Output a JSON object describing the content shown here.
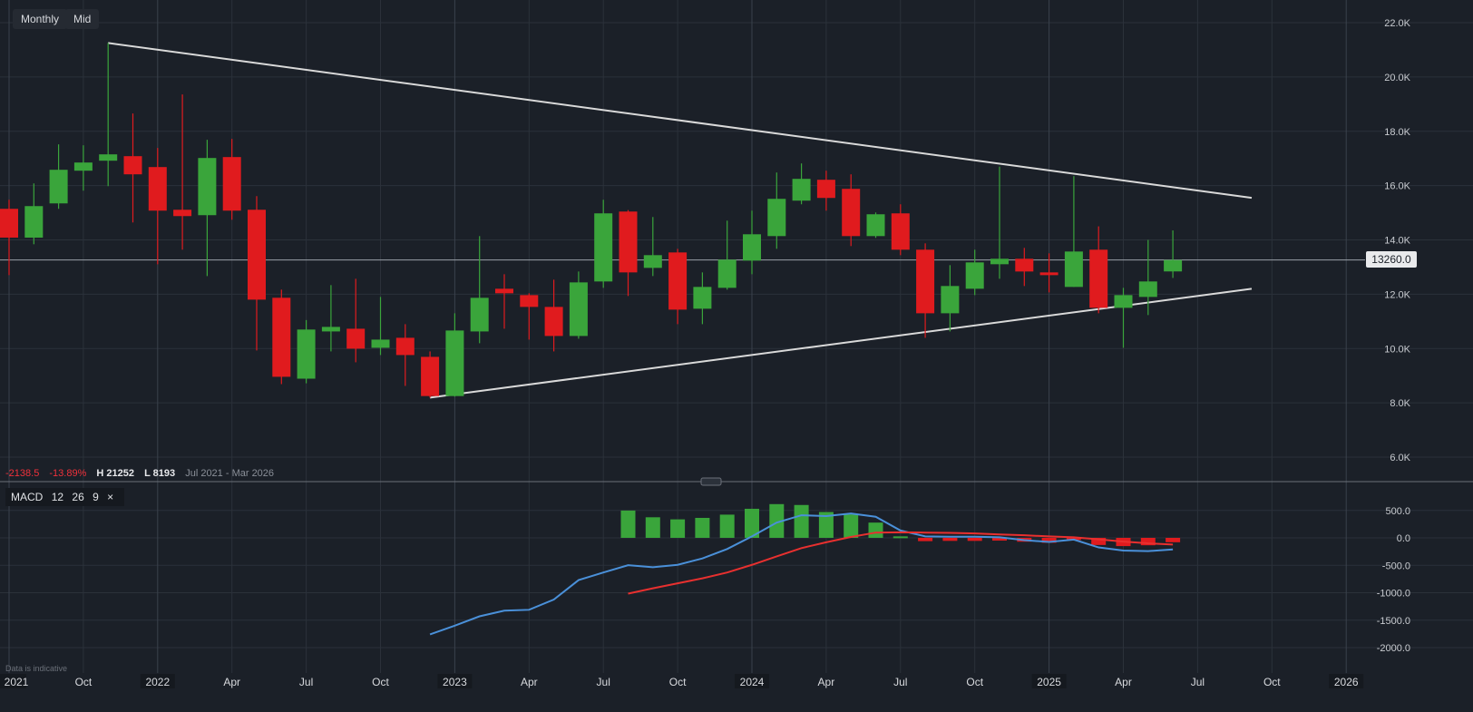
{
  "toolbar": {
    "interval": "Monthly",
    "price_type": "Mid"
  },
  "stats": {
    "change": "-2138.5",
    "change_pct": "-13.89%",
    "high": "H 21252",
    "low": "L 8193",
    "range": "Jul 2021 - Mar 2026"
  },
  "current_price": "13260.0",
  "macd_legend": {
    "name": "MACD",
    "fast": "12",
    "slow": "26",
    "signal": "9",
    "close": "×"
  },
  "footer_note": "Data is indicative",
  "colors": {
    "background": "#1b2028",
    "up": "#3aa53b",
    "down": "#e01b1e",
    "macd_line": "#4a90d9",
    "signal_line": "#e8302f",
    "trendline": "#d9d9d9"
  },
  "chart_data": [
    {
      "type": "candlestick",
      "grid": true,
      "y_ticks": [
        "22.0K",
        "20.0K",
        "18.0K",
        "16.0K",
        "14.0K",
        "12.0K",
        "10.0K",
        "8.0K",
        "6.0K"
      ],
      "ylim": [
        6000,
        22000
      ],
      "x_ticks": [
        {
          "month": "2021-07",
          "label": "2021",
          "year": true
        },
        {
          "month": "2021-10",
          "label": "Oct"
        },
        {
          "month": "2022-01",
          "label": "2022",
          "year": true
        },
        {
          "month": "2022-04",
          "label": "Apr"
        },
        {
          "month": "2022-07",
          "label": "Jul"
        },
        {
          "month": "2022-10",
          "label": "Oct"
        },
        {
          "month": "2023-01",
          "label": "2023",
          "year": true
        },
        {
          "month": "2023-04",
          "label": "Apr"
        },
        {
          "month": "2023-07",
          "label": "Jul"
        },
        {
          "month": "2023-10",
          "label": "Oct"
        },
        {
          "month": "2024-01",
          "label": "2024",
          "year": true
        },
        {
          "month": "2024-04",
          "label": "Apr"
        },
        {
          "month": "2024-07",
          "label": "Jul"
        },
        {
          "month": "2024-10",
          "label": "Oct"
        },
        {
          "month": "2025-01",
          "label": "2025",
          "year": true
        },
        {
          "month": "2025-04",
          "label": "Apr"
        },
        {
          "month": "2025-07",
          "label": "Jul"
        },
        {
          "month": "2025-10",
          "label": "Oct"
        },
        {
          "month": "2026-01",
          "label": "2026",
          "year": true
        }
      ],
      "candles_columns": [
        "month",
        "open",
        "high",
        "low",
        "close"
      ],
      "candles": [
        [
          "2021-07",
          15145,
          15479,
          12704,
          14085
        ],
        [
          "2021-08",
          14085,
          16081,
          13840,
          15245
        ],
        [
          "2021-09",
          15345,
          17519,
          15145,
          16583
        ],
        [
          "2021-10",
          16549,
          17485,
          15814,
          16850
        ],
        [
          "2021-11",
          16917,
          21252,
          15981,
          17151
        ],
        [
          "2021-12",
          17084,
          18656,
          14643,
          16416
        ],
        [
          "2022-01",
          16683,
          17385,
          13105,
          15078
        ],
        [
          "2022-02",
          15111,
          19358,
          13640,
          14877
        ],
        [
          "2022-03",
          14911,
          17686,
          12670,
          17017
        ],
        [
          "2022-04",
          17051,
          17720,
          14743,
          15078
        ],
        [
          "2022-05",
          15111,
          15613,
          9928,
          11801
        ],
        [
          "2022-06",
          11870,
          12170,
          8690,
          8960
        ],
        [
          "2022-07",
          8890,
          11050,
          8720,
          10700
        ],
        [
          "2022-08",
          10630,
          12336,
          9895,
          10797
        ],
        [
          "2022-09",
          10730,
          12570,
          9494,
          9995
        ],
        [
          "2022-10",
          10028,
          11901,
          9761,
          10329
        ],
        [
          "2022-11",
          10396,
          10898,
          8624,
          9761
        ],
        [
          "2022-12",
          9694,
          9895,
          8193,
          8250
        ],
        [
          "2023-01",
          8250,
          11299,
          8230,
          10664
        ],
        [
          "2023-02",
          10630,
          14141,
          10196,
          11868
        ],
        [
          "2023-03",
          12202,
          12737,
          10731,
          12035
        ],
        [
          "2023-04",
          11968,
          12035,
          10329,
          11533
        ],
        [
          "2023-05",
          11533,
          12536,
          9895,
          10463
        ],
        [
          "2023-06",
          10463,
          12837,
          10363,
          12436
        ],
        [
          "2023-07",
          12470,
          15479,
          12236,
          14978
        ],
        [
          "2023-08",
          15045,
          15100,
          11935,
          12804
        ],
        [
          "2023-09",
          12971,
          14843,
          12670,
          13439
        ],
        [
          "2023-10",
          13539,
          13673,
          10898,
          11433
        ],
        [
          "2023-11",
          11467,
          12804,
          10898,
          12269
        ],
        [
          "2023-12",
          12236,
          14710,
          12169,
          13272
        ],
        [
          "2024-01",
          13239,
          15078,
          12737,
          14208
        ],
        [
          "2024-02",
          14141,
          16483,
          13673,
          15513
        ],
        [
          "2024-03",
          15446,
          16817,
          15312,
          16249
        ],
        [
          "2024-04",
          16215,
          16550,
          15078,
          15546
        ],
        [
          "2024-05",
          15881,
          16416,
          13773,
          14141
        ],
        [
          "2024-06",
          14141,
          15011,
          14075,
          14944
        ],
        [
          "2024-07",
          14978,
          15312,
          13439,
          13640
        ],
        [
          "2024-08",
          13640,
          13874,
          10396,
          11299
        ],
        [
          "2024-09",
          11299,
          13071,
          10630,
          12303
        ],
        [
          "2024-10",
          12202,
          13640,
          11968,
          13172
        ],
        [
          "2024-11",
          13105,
          16700,
          12570,
          13306
        ],
        [
          "2024-12",
          13306,
          13707,
          12302,
          12837
        ],
        [
          "2025-01",
          12804,
          13506,
          12068,
          12703
        ],
        [
          "2025-02",
          12269,
          16350,
          12269,
          13573
        ],
        [
          "2025-03",
          13640,
          14500,
          11300,
          11500
        ],
        [
          "2025-04",
          11500,
          12236,
          10028,
          11968
        ],
        [
          "2025-05",
          11901,
          14000,
          11233,
          12470
        ],
        [
          "2025-06",
          12840,
          14350,
          12600,
          13260
        ]
      ],
      "current_price_line": 13260,
      "trendlines": [
        {
          "from": [
            "2021-11",
            21252
          ],
          "to": [
            "2025-09",
            15550
          ]
        },
        {
          "from": [
            "2022-12",
            8193
          ],
          "to": [
            "2025-09",
            12200
          ]
        }
      ]
    },
    {
      "type": "macd",
      "grid": true,
      "y_ticks": [
        "500.0",
        "0.0",
        "-500.0",
        "-1000.0",
        "-1500.0",
        "-2000.0"
      ],
      "ylim": [
        -2300,
        800
      ],
      "macd_start": "2022-12",
      "macd": [
        -1760,
        -1600,
        -1430,
        -1327,
        -1311,
        -1124,
        -770,
        -631,
        -498,
        -535,
        -492,
        -375,
        -203,
        27,
        278,
        412,
        396,
        444,
        385,
        134,
        27,
        20,
        21,
        10,
        -42,
        -74,
        -32,
        -174,
        -231,
        -242,
        -210
      ],
      "signal_start": "2023-08",
      "signal": [
        -1016,
        -920,
        -829,
        -738,
        -631,
        -492,
        -337,
        -187,
        -80,
        16,
        96,
        102,
        96,
        90,
        80,
        63,
        47,
        26,
        10,
        -26,
        -68,
        -100,
        -121
      ],
      "histogram": [
        498,
        375,
        337,
        364,
        423,
        530,
        615,
        599,
        471,
        428,
        278,
        27,
        -60,
        -55,
        -55,
        -50,
        -70,
        -90,
        -40,
        -130,
        -150,
        -135,
        -80
      ]
    }
  ]
}
